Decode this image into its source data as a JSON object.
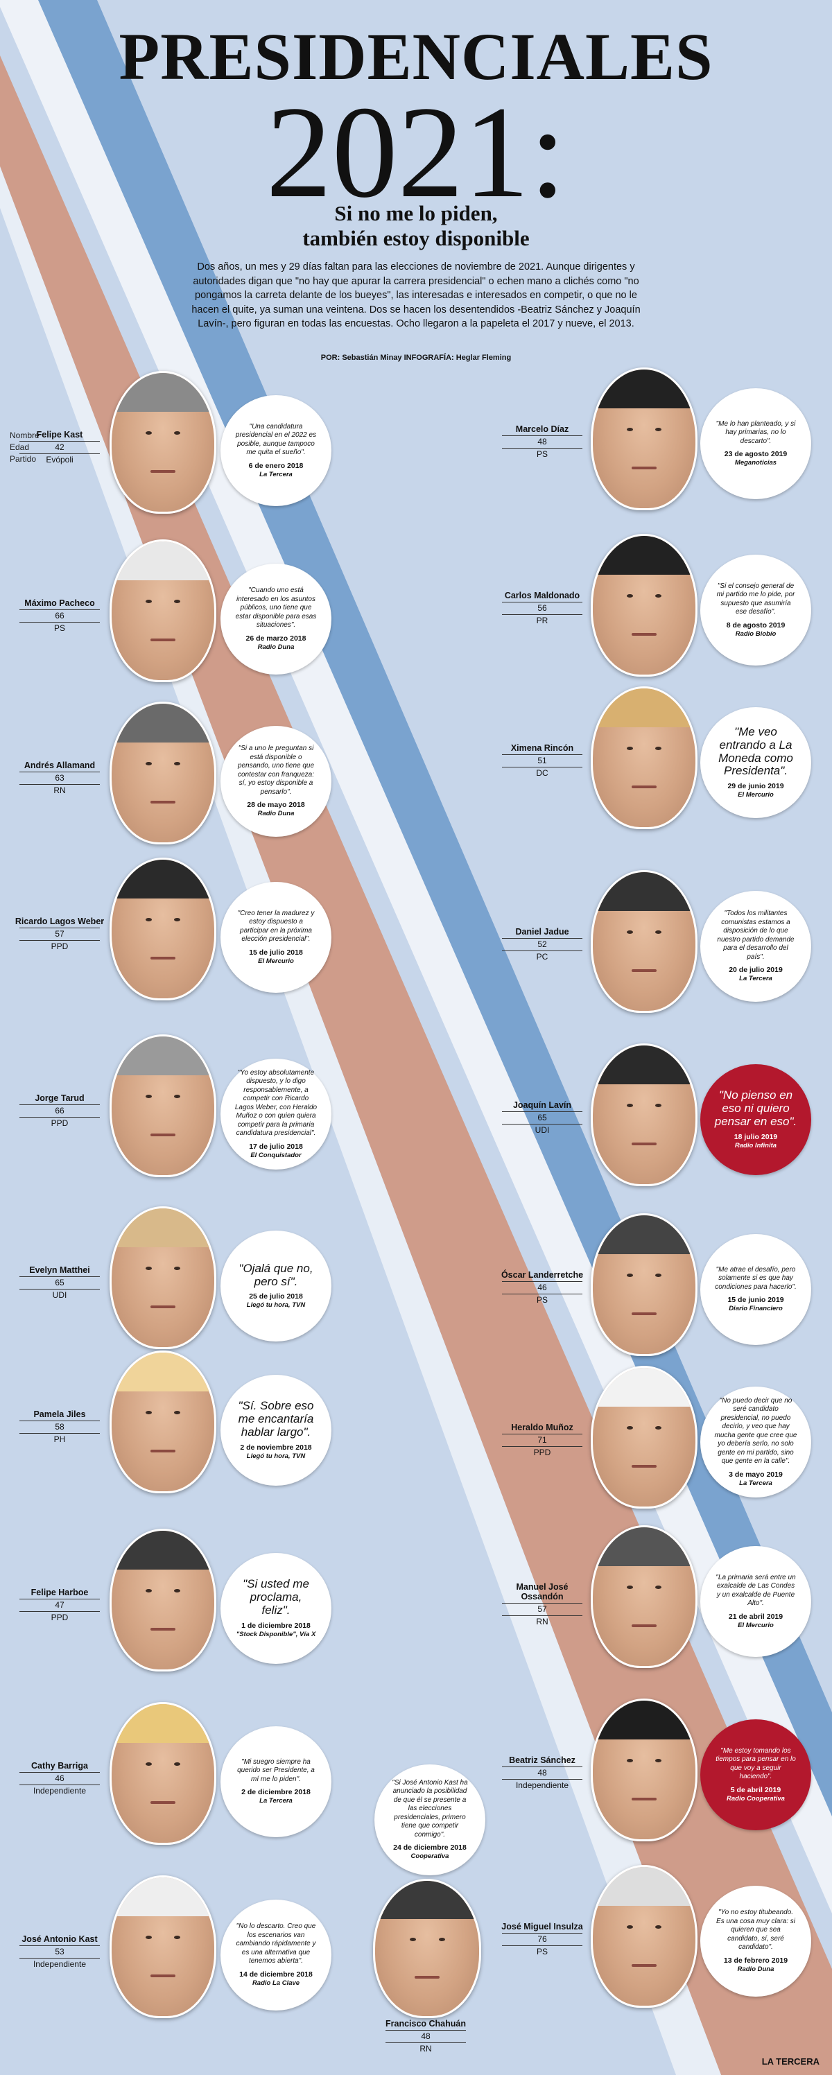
{
  "header": {
    "title": "PRESIDENCIALES",
    "year": "2021:",
    "subtitle1": "Si no me lo piden,",
    "subtitle2": "también estoy disponible",
    "intro": "Dos años, un mes y 29 días faltan para las elecciones de noviembre de 2021. Aunque dirigentes y autoridades digan que \"no hay que apurar la carrera presidencial\" o echen mano a clichés como \"no pongamos la carreta delante de los bueyes\", las interesadas e interesados en competir, o que no le hacen el quite, ya suman una veintena. Dos se hacen los desentendidos -Beatriz Sánchez y Joaquín Lavín-, pero figuran en todas las encuestas. Ocho llegaron a la papeleta el 2017 y nueve, el 2013.",
    "credits": "POR: Sebastián Minay INFOGRAFÍA: Heglar Fleming"
  },
  "legend": {
    "name": "Nombre",
    "age": "Edad",
    "party": "Partido"
  },
  "left": [
    {
      "name": "Felipe Kast",
      "age": "42",
      "party": "Evópoli",
      "quote": "\"Una candidatura presidencial en el 2022 es posible, aunque tampoco me quita el sueño\".",
      "date": "6 de enero 2018",
      "media": "La Tercera"
    },
    {
      "name": "Máximo Pacheco",
      "age": "66",
      "party": "PS",
      "quote": "\"Cuando uno está interesado en los asuntos públicos, uno tiene que estar disponible para esas situaciones\".",
      "date": "26 de marzo 2018",
      "media": "Radio Duna"
    },
    {
      "name": "Andrés Allamand",
      "age": "63",
      "party": "RN",
      "quote": "\"Si a uno le preguntan si está disponible o pensando, uno tiene que contestar con franqueza: sí, yo estoy disponible a pensarlo\".",
      "date": "28 de mayo 2018",
      "media": "Radio Duna"
    },
    {
      "name": "Ricardo Lagos Weber",
      "age": "57",
      "party": "PPD",
      "quote": "\"Creo tener la madurez y estoy dispuesto a participar en la próxima elección presidencial\".",
      "date": "15 de julio 2018",
      "media": "El Mercurio"
    },
    {
      "name": "Jorge Tarud",
      "age": "66",
      "party": "PPD",
      "quote": "\"Yo estoy absolutamente dispuesto, y lo digo responsablemente, a competir con Ricardo Lagos Weber, con Heraldo Muñoz o con quien quiera competir para la primaria candidatura presidencial\".",
      "date": "17 de julio 2018",
      "media": "El Conquistador"
    },
    {
      "name": "Evelyn Matthei",
      "age": "65",
      "party": "UDI",
      "quote": "\"Ojalá que no, pero sí\".",
      "date": "25 de julio 2018",
      "media": "Llegó tu hora, TVN",
      "big": true
    },
    {
      "name": "Pamela Jiles",
      "age": "58",
      "party": "PH",
      "quote": "\"Sí. Sobre eso me encantaría hablar largo\".",
      "date": "2 de noviembre 2018",
      "media": "Llegó tu hora, TVN",
      "big": true
    },
    {
      "name": "Felipe Harboe",
      "age": "47",
      "party": "PPD",
      "quote": "\"Si usted me proclama, feliz\".",
      "date": "1 de diciembre 2018",
      "media": "\"Stock Disponible\", Vía X",
      "big": true
    },
    {
      "name": "Cathy Barriga",
      "age": "46",
      "party": "Independiente",
      "quote": "\"Mi suegro siempre ha querido ser Presidente, a mí me lo piden\".",
      "date": "2 de diciembre 2018",
      "media": "La Tercera"
    },
    {
      "name": "José Antonio Kast",
      "age": "53",
      "party": "Independiente",
      "quote": "\"No lo descarto. Creo que los escenarios van cambiando rápidamente y es una alternativa que tenemos abierta\".",
      "date": "14 de diciembre 2018",
      "media": "Radio La Clave"
    }
  ],
  "right": [
    {
      "name": "Marcelo Díaz",
      "age": "48",
      "party": "PS",
      "quote": "\"Me lo han planteado, y si hay primarias, no lo descarto\".",
      "date": "23 de agosto 2019",
      "media": "Meganoticias"
    },
    {
      "name": "Carlos Maldonado",
      "age": "56",
      "party": "PR",
      "quote": "\"Si el consejo general de mi partido me lo pide, por supuesto que asumiría ese desafío\".",
      "date": "8 de agosto 2019",
      "media": "Radio Biobío"
    },
    {
      "name": "Ximena Rincón",
      "age": "51",
      "party": "DC",
      "quote": "\"Me veo entrando a La Moneda como Presidenta\".",
      "date": "29 de junio 2019",
      "media": "El Mercurio",
      "big": true
    },
    {
      "name": "Daniel Jadue",
      "age": "52",
      "party": "PC",
      "quote": "\"Todos los militantes comunistas estamos a disposición de lo que nuestro partido demande para el desarrollo del país\".",
      "date": "20 de julio 2019",
      "media": "La Tercera"
    },
    {
      "name": "Joaquín Lavín",
      "age": "65",
      "party": "UDI",
      "quote": "\"No pienso en eso ni quiero pensar en eso\".",
      "date": "18 julio 2019",
      "media": "Radio Infinita",
      "red": true,
      "big": true
    },
    {
      "name": "Óscar Landerretche",
      "age": "46",
      "party": "PS",
      "quote": "\"Me atrae el desafío, pero solamente si es que hay condiciones para hacerlo\".",
      "date": "15 de junio 2019",
      "media": "Diario Financiero"
    },
    {
      "name": "Heraldo Muñoz",
      "age": "71",
      "party": "PPD",
      "quote": "\"No puedo decir que no seré candidato presidencial, no puedo decirlo, y veo que hay mucha gente que cree que yo debería serlo, no solo gente en mi partido, sino que gente en la calle\".",
      "date": "3 de mayo 2019",
      "media": "La Tercera"
    },
    {
      "name": "Manuel José Ossandón",
      "age": "57",
      "party": "RN",
      "quote": "\"La primaria será entre un exalcalde de Las Condes y un exalcalde de Puente Alto\".",
      "date": "21 de abril 2019",
      "media": "El Mercurio"
    },
    {
      "name": "Beatriz Sánchez",
      "age": "48",
      "party": "Independiente",
      "quote": "\"Me estoy tomando los tiempos para pensar en lo que voy a seguir haciendo\".",
      "date": "5 de abril 2019",
      "media": "Radio Cooperativa",
      "red": true
    },
    {
      "name": "José Miguel Insulza",
      "age": "76",
      "party": "PS",
      "quote": "\"Yo no estoy titubeando. Es una cosa muy clara: si quieren que sea candidato, sí, seré candidato\".",
      "date": "13 de febrero 2019",
      "media": "Radio Duna"
    }
  ],
  "center": {
    "name": "Francisco Chahuán",
    "age": "48",
    "party": "RN",
    "quote": "\"Si José Antonio Kast ha anunciado la posibilidad de que él se presente a las elecciones presidenciales, primero tiene que competir conmigo\".",
    "date": "24 de diciembre 2018",
    "media": "Cooperativa"
  },
  "footer": "LA TERCERA"
}
